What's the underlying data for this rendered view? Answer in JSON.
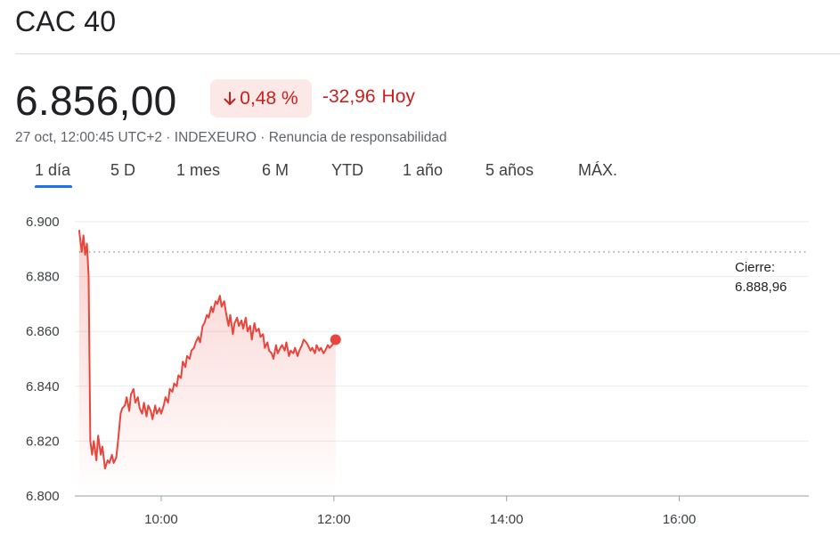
{
  "header": {
    "title": "CAC 40"
  },
  "quote": {
    "price": "6.856,00",
    "percent_change": "0,48 %",
    "absolute_change": "-32,96",
    "period_label": "Hoy",
    "direction_icon": "arrow-down-icon",
    "meta": "27 oct, 12:00:45 UTC+2 · INDEXEURO · Renuncia de responsabilidad"
  },
  "colors": {
    "negative": "#c5221f",
    "negative_bg": "#fce8e6",
    "accent": "#1a73e8",
    "line": "#e8453c"
  },
  "tabs": [
    {
      "label": "1 día",
      "active": true
    },
    {
      "label": "5 D",
      "active": false
    },
    {
      "label": "1 mes",
      "active": false
    },
    {
      "label": "6 M",
      "active": false
    },
    {
      "label": "YTD",
      "active": false
    },
    {
      "label": "1 año",
      "active": false
    },
    {
      "label": "5 años",
      "active": false
    },
    {
      "label": "MÁX.",
      "active": false
    }
  ],
  "chart_data": {
    "type": "area",
    "x_unit": "hour_of_day",
    "xlim": [
      9.0,
      17.5
    ],
    "ylim": [
      6800,
      6900
    ],
    "y_ticks": [
      6900,
      6880,
      6860,
      6840,
      6820,
      6800
    ],
    "y_tick_labels": [
      "6.900",
      "6.880",
      "6.860",
      "6.840",
      "6.820",
      "6.800"
    ],
    "x_ticks": [
      10,
      12,
      14,
      16
    ],
    "x_tick_labels": [
      "10:00",
      "12:00",
      "14:00",
      "16:00"
    ],
    "grid": true,
    "previous_close": {
      "label": "Cierre:",
      "value": 6888.96,
      "value_label": "6.888,96"
    },
    "series": [
      {
        "x": [
          9.05,
          9.08,
          9.1,
          9.12,
          9.14,
          9.16,
          9.18,
          9.2,
          9.22,
          9.25,
          9.27,
          9.3,
          9.32,
          9.35,
          9.38,
          9.4,
          9.43,
          9.45,
          9.48,
          9.5,
          9.53,
          9.55,
          9.58,
          9.6,
          9.63,
          9.65,
          9.68,
          9.7,
          9.73,
          9.75,
          9.78,
          9.8,
          9.83,
          9.85,
          9.88,
          9.9,
          9.93,
          9.95,
          9.98,
          10.0,
          10.03,
          10.05,
          10.08,
          10.1,
          10.13,
          10.15,
          10.18,
          10.2,
          10.23,
          10.25,
          10.28,
          10.3,
          10.33,
          10.35,
          10.38,
          10.4,
          10.43,
          10.45,
          10.48,
          10.5,
          10.53,
          10.55,
          10.58,
          10.6,
          10.63,
          10.65,
          10.68,
          10.7,
          10.73,
          10.75,
          10.78,
          10.8,
          10.83,
          10.85,
          10.88,
          10.9,
          10.93,
          10.95,
          10.98,
          11.0,
          11.03,
          11.05,
          11.08,
          11.1,
          11.13,
          11.15,
          11.18,
          11.2,
          11.23,
          11.25,
          11.28,
          11.3,
          11.33,
          11.35,
          11.38,
          11.4,
          11.43,
          11.45,
          11.48,
          11.5,
          11.53,
          11.55,
          11.58,
          11.6,
          11.63,
          11.65,
          11.68,
          11.7,
          11.73,
          11.75,
          11.78,
          11.8,
          11.83,
          11.85,
          11.88,
          11.9,
          11.93,
          11.95,
          11.98,
          12.02
        ],
        "values": [
          6897,
          6889,
          6895,
          6888,
          6892,
          6880,
          6820,
          6815,
          6820,
          6813,
          6822,
          6815,
          6818,
          6810,
          6813,
          6812,
          6815,
          6812,
          6814,
          6820,
          6830,
          6832,
          6833,
          6836,
          6831,
          6837,
          6839,
          6834,
          6836,
          6832,
          6830,
          6834,
          6829,
          6833,
          6831,
          6828,
          6833,
          6830,
          6832,
          6830,
          6833,
          6836,
          6834,
          6839,
          6838,
          6841,
          6840,
          6844,
          6843,
          6849,
          6847,
          6851,
          6850,
          6853,
          6854,
          6856,
          6858,
          6856,
          6862,
          6863,
          6866,
          6865,
          6869,
          6867,
          6871,
          6870,
          6873,
          6869,
          6871,
          6867,
          6862,
          6866,
          6859,
          6863,
          6865,
          6862,
          6864,
          6861,
          6865,
          6860,
          6862,
          6857,
          6863,
          6860,
          6861,
          6858,
          6859,
          6854,
          6856,
          6853,
          6852,
          6850,
          6855,
          6852,
          6854,
          6855,
          6853,
          6856,
          6851,
          6853,
          6852,
          6854,
          6851,
          6853,
          6855,
          6857,
          6856,
          6855,
          6853,
          6854,
          6852,
          6855,
          6853,
          6854,
          6852,
          6853,
          6855,
          6854,
          6855,
          6857
        ]
      }
    ],
    "last_point": {
      "x": 12.02,
      "y": 6857
    }
  }
}
